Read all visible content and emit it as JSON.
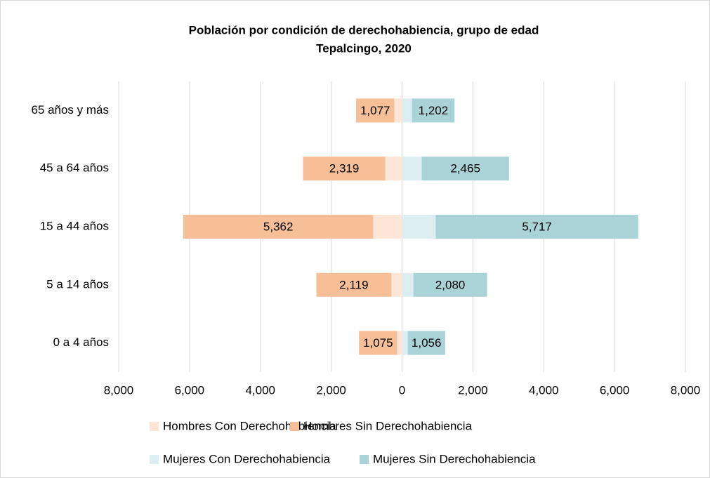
{
  "chart_data": {
    "type": "bar",
    "orientation": "horizontal",
    "stacked": true,
    "title": "Población por condición de derechohabiencia, grupo de edad",
    "subtitle": "Tepalcingo, 2020",
    "categories": [
      "0 a 4 años",
      "5 a 14 años",
      "15 a 44 años",
      "45 a 64 años",
      "65 años y más"
    ],
    "series": [
      {
        "name": "Hombres Con Derechohabiencia",
        "color": "#fde6d8",
        "values": [
          -140,
          -300,
          -815,
          -475,
          -220
        ]
      },
      {
        "name": "Hombres Sin Derechohabiencia",
        "color": "#f7bf97",
        "values": [
          -1075,
          -2119,
          -5362,
          -2319,
          -1077
        ],
        "value_labels": [
          "1,075",
          "2,119",
          "5,362",
          "2,319",
          "1,077"
        ]
      },
      {
        "name": "Mujeres Con Derechohabiencia",
        "color": "#ddeef3",
        "values": [
          160,
          320,
          950,
          555,
          280
        ]
      },
      {
        "name": "Mujeres Sin Derechohabiencia",
        "color": "#aad3d8",
        "values": [
          1056,
          2080,
          5717,
          2465,
          1202
        ],
        "value_labels": [
          "1,056",
          "2,080",
          "5,717",
          "2,465",
          "1,202"
        ]
      }
    ],
    "xlim": [
      -8000,
      8000
    ],
    "xticks": [
      {
        "value": -8000,
        "label": "8,000"
      },
      {
        "value": -6000,
        "label": "6,000"
      },
      {
        "value": -4000,
        "label": "4,000"
      },
      {
        "value": -2000,
        "label": "2,000"
      },
      0,
      {
        "value": 2000,
        "label": "2,000"
      },
      {
        "value": 4000,
        "label": "4,000"
      },
      {
        "value": 6000,
        "label": "6,000"
      },
      {
        "value": 8000,
        "label": "8,000"
      }
    ],
    "grid": true,
    "legend": "bottom"
  }
}
